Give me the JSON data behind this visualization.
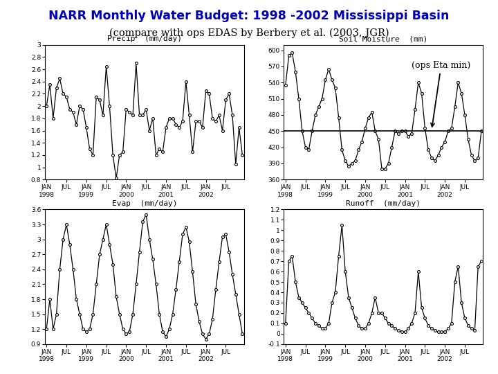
{
  "title": "NARR Monthly Water Budget: 1998 -2002 Mississippi Basin",
  "subtitle": "(compare with ops EDAS by Berbery et al. (2003, JGR)",
  "title_color": "#0000BB",
  "subtitle_color": "#000000",
  "background_color": "#ffffff",
  "precip_label": "Precip  (mm/day)",
  "soil_label": "Soil Moisture  (mm)",
  "evap_label": "Evap  (mm/day)",
  "runoff_label": "Runoff  (mm/day)",
  "precip_ylim": [
    0.8,
    3.0
  ],
  "precip_yticks": [
    0.8,
    1.0,
    1.2,
    1.4,
    1.6,
    1.8,
    2.0,
    2.2,
    2.4,
    2.6,
    2.8,
    3.0
  ],
  "soil_ylim": [
    360,
    610
  ],
  "soil_yticks": [
    360,
    390,
    420,
    450,
    480,
    510,
    540,
    570,
    600
  ],
  "evap_ylim": [
    0.9,
    3.6
  ],
  "evap_yticks": [
    0.9,
    1.2,
    1.5,
    1.8,
    2.1,
    2.4,
    2.7,
    3.0,
    3.3,
    3.6
  ],
  "runoff_ylim": [
    -0.1,
    1.2
  ],
  "runoff_yticks": [
    -0.1,
    0.0,
    0.1,
    0.2,
    0.3,
    0.4,
    0.5,
    0.6,
    0.7,
    0.8,
    0.9,
    1.0,
    1.1,
    1.2
  ],
  "ops_eta_min_line": 450,
  "precip_data": [
    2.0,
    2.35,
    1.8,
    2.3,
    2.45,
    2.2,
    2.15,
    1.95,
    1.9,
    1.7,
    2.0,
    1.95,
    1.65,
    1.3,
    1.2,
    2.15,
    2.1,
    1.85,
    2.65,
    2.0,
    1.2,
    0.82,
    1.2,
    1.25,
    1.95,
    1.9,
    1.85,
    2.7,
    1.85,
    1.85,
    1.95,
    1.6,
    1.8,
    1.2,
    1.3,
    1.25,
    1.65,
    1.8,
    1.8,
    1.7,
    1.65,
    1.75,
    2.4,
    1.85,
    1.25,
    1.75,
    1.75,
    1.65,
    2.25,
    2.2,
    1.8,
    1.75,
    1.85,
    1.6,
    2.1,
    2.2,
    1.85,
    1.05,
    1.65,
    1.2
  ],
  "soil_data": [
    535,
    590,
    595,
    560,
    510,
    450,
    420,
    415,
    450,
    480,
    495,
    510,
    545,
    565,
    545,
    530,
    475,
    415,
    395,
    385,
    390,
    395,
    415,
    430,
    455,
    475,
    485,
    450,
    435,
    380,
    380,
    390,
    420,
    450,
    445,
    450,
    450,
    440,
    445,
    490,
    540,
    520,
    455,
    415,
    400,
    395,
    405,
    420,
    430,
    450,
    455,
    495,
    540,
    520,
    480,
    435,
    405,
    395,
    400,
    450
  ],
  "evap_data": [
    1.2,
    1.8,
    1.2,
    1.5,
    2.4,
    3.0,
    3.3,
    2.9,
    2.4,
    1.8,
    1.5,
    1.2,
    1.15,
    1.2,
    1.5,
    2.1,
    2.7,
    3.0,
    3.3,
    2.9,
    2.5,
    1.85,
    1.5,
    1.2,
    1.1,
    1.15,
    1.5,
    2.1,
    2.75,
    3.35,
    3.5,
    3.0,
    2.6,
    2.1,
    1.5,
    1.15,
    1.05,
    1.2,
    1.5,
    2.0,
    2.55,
    3.1,
    3.25,
    2.95,
    2.35,
    1.7,
    1.35,
    1.1,
    1.0,
    1.1,
    1.4,
    2.0,
    2.55,
    3.05,
    3.1,
    2.75,
    2.3,
    1.9,
    1.5,
    1.1
  ],
  "runoff_data": [
    0.1,
    0.7,
    0.75,
    0.5,
    0.35,
    0.3,
    0.25,
    0.2,
    0.15,
    0.1,
    0.08,
    0.05,
    0.05,
    0.1,
    0.3,
    0.4,
    0.75,
    1.05,
    0.6,
    0.35,
    0.25,
    0.15,
    0.08,
    0.05,
    0.05,
    0.1,
    0.2,
    0.35,
    0.2,
    0.2,
    0.15,
    0.1,
    0.08,
    0.05,
    0.03,
    0.02,
    0.02,
    0.05,
    0.1,
    0.2,
    0.6,
    0.25,
    0.15,
    0.08,
    0.05,
    0.03,
    0.02,
    0.02,
    0.02,
    0.05,
    0.1,
    0.5,
    0.65,
    0.3,
    0.15,
    0.08,
    0.05,
    0.03,
    0.65,
    0.7
  ]
}
